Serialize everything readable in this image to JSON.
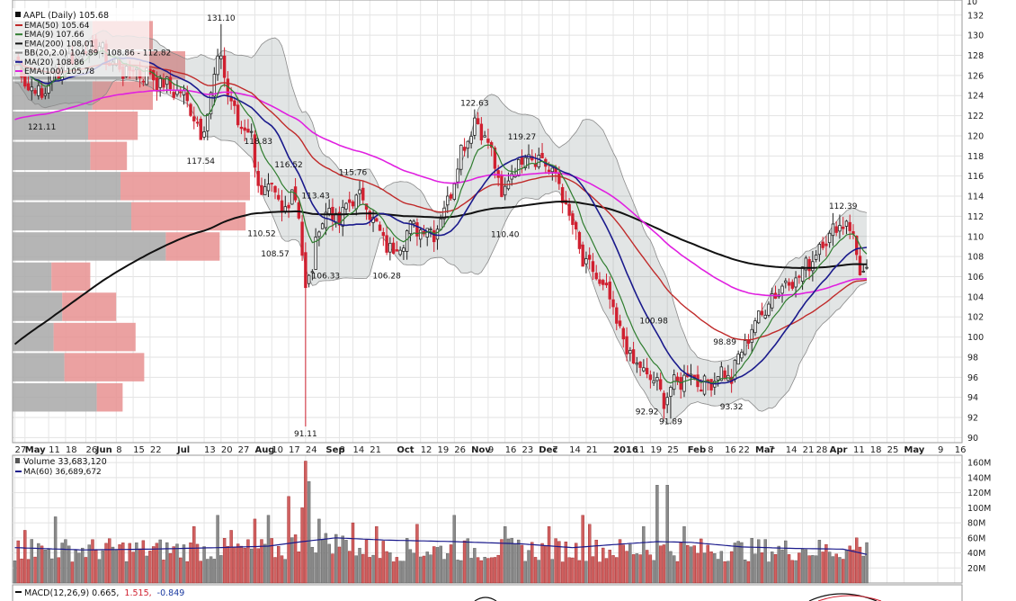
{
  "colors": {
    "ema50": "#c02a2a",
    "ema9": "#2f7d2f",
    "ema200": "#111111",
    "bb": "#8a8a8a",
    "ma20": "#1a1a8c",
    "ema100": "#e020e0",
    "vp_up": "#e89090",
    "vp_down": "#a8a8a8",
    "candle_up": "#222222",
    "candle_down": "#d02030",
    "vol_up": "#8a8a8a",
    "vol_down": "#d06060",
    "vol_ma": "#1a1a8c",
    "macd_label_2": "#d02030",
    "macd_label_3": "#1a3aa0"
  },
  "legend": {
    "title": "AAPL (Daily) 105.68",
    "lines": [
      {
        "text": "EMA(50) 105.64",
        "color": "#c02a2a"
      },
      {
        "text": "EMA(9) 107.66",
        "color": "#2f7d2f"
      },
      {
        "text": "EMA(200) 108.01",
        "color": "#111111"
      },
      {
        "text": "BB(20,2.0) 104.89 - 108.86 - 112.82",
        "color": "#8a8a8a"
      },
      {
        "text": "MA(20) 108.86",
        "color": "#1a1a8c"
      },
      {
        "text": "EMA(100) 105.78",
        "color": "#e020e0"
      }
    ]
  },
  "volume_legend": {
    "title": "Volume 33,683,120",
    "ma": "MA(60) 36,689,672"
  },
  "macd_legend": {
    "part1": "MACD(12,26,9) 0.665,",
    "part2": "1.515,",
    "part3": "-0.849"
  },
  "top_axis_label": "10",
  "chart_data": [
    {
      "type": "candlestick",
      "y_ticks": [
        90,
        92,
        94,
        96,
        98,
        100,
        102,
        104,
        106,
        108,
        110,
        112,
        114,
        116,
        118,
        120,
        122,
        124,
        126,
        128,
        130,
        132
      ],
      "ylim": [
        89.5,
        133.5
      ],
      "x_labels": [
        {
          "t": "27",
          "i": 0
        },
        {
          "t": "May",
          "i": 3,
          "bold": true
        },
        {
          "t": "11",
          "i": 10
        },
        {
          "t": "18",
          "i": 15
        },
        {
          "t": "26",
          "i": 21
        },
        {
          "t": "Jun",
          "i": 24,
          "bold": true
        },
        {
          "t": "8",
          "i": 30
        },
        {
          "t": "15",
          "i": 35
        },
        {
          "t": "22",
          "i": 40
        },
        {
          "t": "Jul",
          "i": 48,
          "bold": true
        },
        {
          "t": "13",
          "i": 56
        },
        {
          "t": "20",
          "i": 61
        },
        {
          "t": "27",
          "i": 66
        },
        {
          "t": "Aug",
          "i": 71,
          "bold": true
        },
        {
          "t": "10",
          "i": 76
        },
        {
          "t": "17",
          "i": 81
        },
        {
          "t": "24",
          "i": 86
        },
        {
          "t": "Sep",
          "i": 92,
          "bold": true
        },
        {
          "t": "8",
          "i": 96
        },
        {
          "t": "14",
          "i": 100
        },
        {
          "t": "21",
          "i": 105
        },
        {
          "t": "Oct",
          "i": 113,
          "bold": true
        },
        {
          "t": "12",
          "i": 120
        },
        {
          "t": "19",
          "i": 125
        },
        {
          "t": "26",
          "i": 130
        },
        {
          "t": "Nov",
          "i": 135,
          "bold": true
        },
        {
          "t": "9",
          "i": 140
        },
        {
          "t": "16",
          "i": 145
        },
        {
          "t": "23",
          "i": 150
        },
        {
          "t": "Dec",
          "i": 155,
          "bold": true
        },
        {
          "t": "7",
          "i": 159
        },
        {
          "t": "14",
          "i": 164
        },
        {
          "t": "21",
          "i": 169
        },
        {
          "t": "2016",
          "i": 177,
          "bold": true
        },
        {
          "t": "11",
          "i": 183
        },
        {
          "t": "19",
          "i": 188
        },
        {
          "t": "25",
          "i": 193
        },
        {
          "t": "Feb",
          "i": 199,
          "bold": true
        },
        {
          "t": "8",
          "i": 205
        },
        {
          "t": "16",
          "i": 210
        },
        {
          "t": "22",
          "i": 214
        },
        {
          "t": "Mar",
          "i": 219,
          "bold": true
        },
        {
          "t": "7",
          "i": 223
        },
        {
          "t": "14",
          "i": 228
        },
        {
          "t": "21",
          "i": 233
        },
        {
          "t": "28",
          "i": 237
        },
        {
          "t": "Apr",
          "i": 241,
          "bold": true
        },
        {
          "t": "11",
          "i": 248
        },
        {
          "t": "18",
          "i": 253
        },
        {
          "t": "25",
          "i": 258
        },
        {
          "t": "May",
          "i": 263,
          "bold": true
        },
        {
          "t": "9",
          "i": 273
        },
        {
          "t": "16",
          "i": 278
        }
      ],
      "annotations": [
        {
          "t": "131.10",
          "i": 61,
          "v": 131.1,
          "pos": "above"
        },
        {
          "t": "121.11",
          "i": 8,
          "v": 121.6,
          "pos": "below"
        },
        {
          "t": "117.54",
          "i": 55,
          "v": 118.2,
          "pos": "below"
        },
        {
          "t": "118.83",
          "i": 72,
          "v": 118.83,
          "pos": "above"
        },
        {
          "t": "116.52",
          "i": 81,
          "v": 116.52,
          "pos": "above"
        },
        {
          "t": "115.76",
          "i": 100,
          "v": 115.76,
          "pos": "above"
        },
        {
          "t": "113.43",
          "i": 89,
          "v": 113.43,
          "pos": "above"
        },
        {
          "t": "110.52",
          "i": 73,
          "v": 111.0,
          "pos": "below"
        },
        {
          "t": "108.57",
          "i": 77,
          "v": 109.0,
          "pos": "below"
        },
        {
          "t": "106.33",
          "i": 92,
          "v": 106.8,
          "pos": "below"
        },
        {
          "t": "106.28",
          "i": 110,
          "v": 106.8,
          "pos": "below"
        },
        {
          "t": "91.11",
          "i": 86,
          "v": 91.11,
          "pos": "below"
        },
        {
          "t": "122.63",
          "i": 136,
          "v": 122.63,
          "pos": "above"
        },
        {
          "t": "119.27",
          "i": 150,
          "v": 119.27,
          "pos": "above"
        },
        {
          "t": "110.40",
          "i": 145,
          "v": 110.9,
          "pos": "below"
        },
        {
          "t": "100.98",
          "i": 189,
          "v": 100.98,
          "pos": "above"
        },
        {
          "t": "92.92",
          "i": 187,
          "v": 93.3,
          "pos": "below"
        },
        {
          "t": "91.89",
          "i": 194,
          "v": 92.3,
          "pos": "below"
        },
        {
          "t": "98.89",
          "i": 210,
          "v": 98.89,
          "pos": "above"
        },
        {
          "t": "93.32",
          "i": 212,
          "v": 93.8,
          "pos": "below"
        },
        {
          "t": "112.39",
          "i": 245,
          "v": 112.39,
          "pos": "above"
        }
      ],
      "volume_profile": [
        {
          "lo": 128.5,
          "hi": 131.5,
          "total": 65,
          "up": 28
        },
        {
          "lo": 125.5,
          "hi": 128.5,
          "total": 80,
          "up": 27
        },
        {
          "lo": 122.5,
          "hi": 125.5,
          "total": 65,
          "up": 28
        },
        {
          "lo": 119.5,
          "hi": 122.5,
          "total": 58,
          "up": 23
        },
        {
          "lo": 116.5,
          "hi": 119.5,
          "total": 53,
          "up": 17
        },
        {
          "lo": 113.5,
          "hi": 116.5,
          "total": 110,
          "up": 60
        },
        {
          "lo": 110.5,
          "hi": 113.5,
          "total": 108,
          "up": 53
        },
        {
          "lo": 107.5,
          "hi": 110.5,
          "total": 96,
          "up": 25
        },
        {
          "lo": 104.5,
          "hi": 107.5,
          "total": 36,
          "up": 18
        },
        {
          "lo": 101.5,
          "hi": 104.5,
          "total": 48,
          "up": 25
        },
        {
          "lo": 98.5,
          "hi": 101.5,
          "total": 57,
          "up": 38
        },
        {
          "lo": 95.5,
          "hi": 98.5,
          "total": 61,
          "up": 37
        },
        {
          "lo": 92.5,
          "hi": 95.5,
          "total": 51,
          "up": 12
        }
      ],
      "close_keypoints": [
        [
          0,
          127.5
        ],
        [
          4,
          125
        ],
        [
          8,
          124
        ],
        [
          12,
          126.5
        ],
        [
          16,
          127.5
        ],
        [
          20,
          128.5
        ],
        [
          24,
          129
        ],
        [
          28,
          127.5
        ],
        [
          32,
          126.5
        ],
        [
          36,
          126.5
        ],
        [
          40,
          126
        ],
        [
          44,
          125
        ],
        [
          48,
          124.5
        ],
        [
          52,
          123
        ],
        [
          55,
          120
        ],
        [
          58,
          124
        ],
        [
          61,
          128.5
        ],
        [
          63,
          124
        ],
        [
          66,
          121.5
        ],
        [
          70,
          120
        ],
        [
          73,
          113.5
        ],
        [
          76,
          115
        ],
        [
          79,
          112
        ],
        [
          82,
          115
        ],
        [
          84,
          112
        ],
        [
          86,
          105
        ],
        [
          88,
          106.5
        ],
        [
          90,
          111.5
        ],
        [
          93,
          112.5
        ],
        [
          96,
          111.5
        ],
        [
          100,
          114
        ],
        [
          104,
          113.5
        ],
        [
          108,
          110
        ],
        [
          112,
          108.5
        ],
        [
          116,
          110.5
        ],
        [
          120,
          111
        ],
        [
          124,
          110.5
        ],
        [
          128,
          113.5
        ],
        [
          132,
          118.5
        ],
        [
          136,
          121.5
        ],
        [
          140,
          119.5
        ],
        [
          144,
          114
        ],
        [
          148,
          117
        ],
        [
          152,
          118.5
        ],
        [
          156,
          117.5
        ],
        [
          160,
          116
        ],
        [
          164,
          112
        ],
        [
          168,
          107.5
        ],
        [
          172,
          106
        ],
        [
          176,
          103.5
        ],
        [
          180,
          99.5
        ],
        [
          184,
          97
        ],
        [
          188,
          96
        ],
        [
          192,
          94
        ],
        [
          196,
          95.5
        ],
        [
          200,
          96.5
        ],
        [
          204,
          95
        ],
        [
          208,
          96.5
        ],
        [
          212,
          96
        ],
        [
          216,
          99.5
        ],
        [
          220,
          102
        ],
        [
          224,
          104
        ],
        [
          228,
          105.5
        ],
        [
          232,
          106
        ],
        [
          236,
          108
        ],
        [
          240,
          110
        ],
        [
          244,
          111
        ],
        [
          246,
          112
        ],
        [
          248,
          109.5
        ],
        [
          250,
          107
        ],
        [
          252,
          106
        ]
      ],
      "volume": {
        "y_ticks": [
          20,
          40,
          60,
          80,
          100,
          120,
          140,
          160
        ],
        "y_tick_labels": [
          "20M",
          "40M",
          "60M",
          "80M",
          "100M",
          "120M",
          "140M",
          "160M"
        ],
        "ylim": [
          0,
          165
        ],
        "ma_keypoints": [
          [
            0,
            47
          ],
          [
            20,
            44
          ],
          [
            40,
            45
          ],
          [
            60,
            47
          ],
          [
            75,
            49
          ],
          [
            85,
            55
          ],
          [
            95,
            60
          ],
          [
            110,
            57
          ],
          [
            130,
            55
          ],
          [
            150,
            52
          ],
          [
            165,
            47
          ],
          [
            180,
            52
          ],
          [
            190,
            55
          ],
          [
            200,
            54
          ],
          [
            215,
            48
          ],
          [
            230,
            46
          ],
          [
            245,
            45
          ],
          [
            252,
            38
          ]
        ],
        "spikes": [
          [
            86,
            162
          ],
          [
            87,
            135
          ],
          [
            85,
            100
          ],
          [
            81,
            115
          ],
          [
            71,
            85
          ],
          [
            75,
            90
          ],
          [
            90,
            85
          ],
          [
            100,
            80
          ],
          [
            107,
            75
          ],
          [
            119,
            78
          ],
          [
            130,
            90
          ],
          [
            145,
            75
          ],
          [
            158,
            75
          ],
          [
            168,
            90
          ],
          [
            170,
            78
          ],
          [
            190,
            130
          ],
          [
            186,
            75
          ],
          [
            193,
            130
          ],
          [
            198,
            75
          ],
          [
            233,
            45
          ],
          [
            249,
            60
          ],
          [
            12,
            88
          ],
          [
            3,
            70
          ],
          [
            5,
            58
          ],
          [
            60,
            90
          ],
          [
            53,
            75
          ],
          [
            64,
            70
          ]
        ]
      }
    }
  ]
}
